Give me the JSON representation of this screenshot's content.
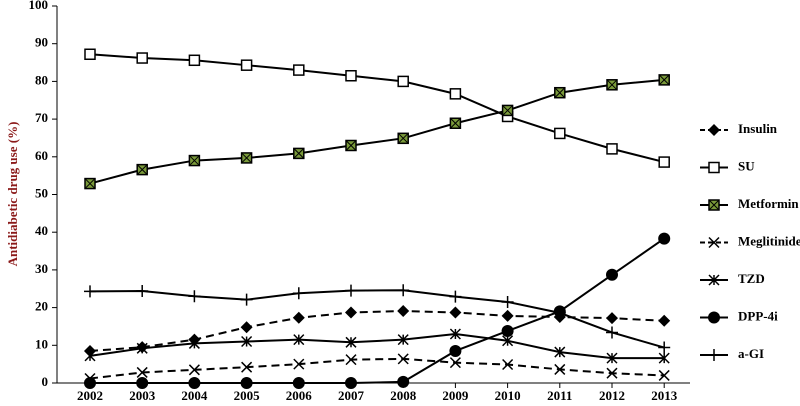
{
  "chart_data": {
    "type": "line",
    "y_label": "Antidiabetic drug use (%)",
    "categories": [
      "2002",
      "2003",
      "2004",
      "2005",
      "2006",
      "2007",
      "2008",
      "2009",
      "2010",
      "2011",
      "2012",
      "2013"
    ],
    "ylim": [
      0,
      100
    ],
    "yticks": [
      0,
      10,
      20,
      30,
      40,
      50,
      60,
      70,
      80,
      90,
      100
    ],
    "grid": false,
    "series": [
      {
        "name": "Insulin",
        "color": "#000000",
        "marker": "diamond",
        "dash": true,
        "values": [
          8.5,
          9.5,
          11.5,
          14.8,
          17.3,
          18.7,
          19.1,
          18.7,
          17.8,
          17.5,
          17.2,
          16.5
        ]
      },
      {
        "name": "SU",
        "color": "#000000",
        "marker": "open-square",
        "dash": false,
        "values": [
          87.2,
          86.2,
          85.6,
          84.3,
          83.0,
          81.5,
          80.0,
          76.7,
          70.7,
          66.2,
          62.1,
          58.6
        ]
      },
      {
        "name": "Metformin",
        "color": "#000000",
        "marker": "green-square",
        "dash": false,
        "values": [
          52.9,
          56.6,
          59.0,
          59.7,
          60.9,
          63.0,
          64.9,
          68.9,
          72.3,
          77.0,
          79.1,
          80.4
        ]
      },
      {
        "name": "Meglitinide",
        "color": "#000000",
        "marker": "x",
        "dash": true,
        "values": [
          1.2,
          2.8,
          3.5,
          4.2,
          5.0,
          6.2,
          6.4,
          5.4,
          4.9,
          3.6,
          2.6,
          2.0
        ]
      },
      {
        "name": "TZD",
        "color": "#000000",
        "marker": "star",
        "dash": false,
        "values": [
          7.2,
          9.2,
          10.5,
          11.0,
          11.5,
          10.8,
          11.5,
          13.0,
          11.2,
          8.2,
          6.6,
          6.6
        ]
      },
      {
        "name": "DPP-4i",
        "color": "#000000",
        "marker": "circle",
        "dash": false,
        "values": [
          0,
          0,
          0,
          0,
          0,
          0,
          0.3,
          8.5,
          13.8,
          19.0,
          28.7,
          38.3
        ]
      },
      {
        "name": "a-GI",
        "color": "#000000",
        "marker": "plus",
        "dash": false,
        "values": [
          24.3,
          24.4,
          23.0,
          22.1,
          23.8,
          24.5,
          24.6,
          22.9,
          21.5,
          18.6,
          13.4,
          9.4
        ]
      }
    ]
  }
}
